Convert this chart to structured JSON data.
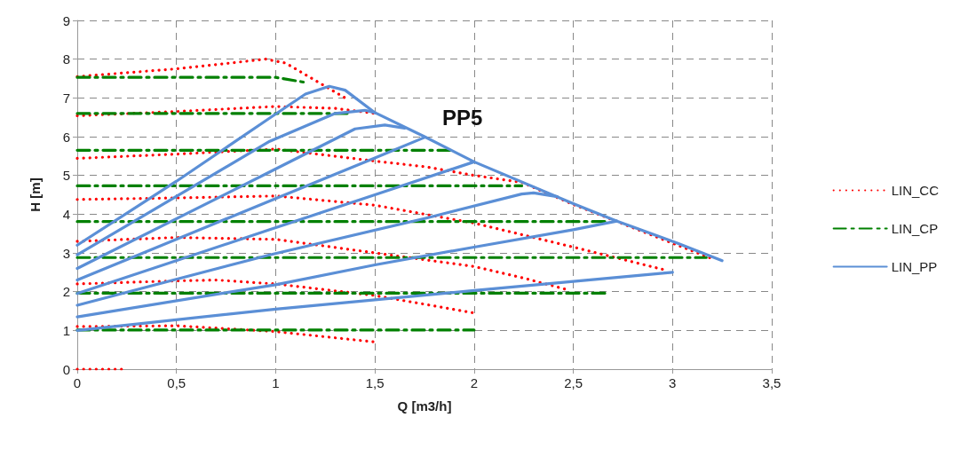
{
  "chart_data": {
    "type": "line",
    "xlabel": "Q [m3/h]",
    "ylabel": "H [m]",
    "annotations": [
      "PP5"
    ],
    "xlim": [
      0,
      3.5
    ],
    "xticks": [
      0,
      {
        "value": 0.5,
        "label": "0,5"
      },
      1,
      {
        "value": 1.5,
        "label": "1,5"
      },
      2,
      {
        "value": 2.5,
        "label": "2,5"
      },
      3,
      {
        "value": 3.5,
        "label": "3,5"
      }
    ],
    "ylim": [
      0,
      9
    ],
    "yticks": [
      0,
      1,
      2,
      3,
      4,
      5,
      6,
      7,
      8,
      9
    ],
    "grid": true,
    "legend": "right",
    "marker": "none",
    "series": [
      {
        "name": "LIN_CC",
        "color": "#ff0000",
        "line_style": "dotted",
        "x": [
          0,
          0.25
        ],
        "values": [
          0,
          0
        ]
      },
      {
        "color": "#ff0000",
        "line_style": "dotted",
        "x": [
          0,
          0.5,
          1,
          1.5
        ],
        "values": [
          1.1,
          1.12,
          0.97,
          0.7
        ]
      },
      {
        "color": "#ff0000",
        "line_style": "dotted",
        "x": [
          0,
          0.5,
          0.7,
          1,
          1.5,
          2
        ],
        "values": [
          2.2,
          2.28,
          2.3,
          2.2,
          1.9,
          1.45
        ]
      },
      {
        "color": "#ff0000",
        "line_style": "dotted",
        "x": [
          0,
          0.5,
          1,
          1.5,
          2,
          2.25,
          2.47
        ],
        "values": [
          3.3,
          3.4,
          3.35,
          3.0,
          2.65,
          2.35,
          2.05
        ]
      },
      {
        "color": "#ff0000",
        "line_style": "dotted",
        "x": [
          0,
          0.5,
          1,
          1.5,
          2,
          2.5,
          2.97
        ],
        "values": [
          4.38,
          4.42,
          4.47,
          4.23,
          3.77,
          3.15,
          2.55
        ]
      },
      {
        "color": "#ff0000",
        "line_style": "dotted",
        "x": [
          0,
          0.5,
          1,
          1.5,
          1.76,
          2,
          2.24,
          2.5,
          3,
          3.2
        ],
        "values": [
          5.44,
          5.55,
          5.68,
          5.37,
          5.22,
          5.0,
          4.82,
          4.25,
          3.25,
          2.85
        ]
      },
      {
        "color": "#ff0000",
        "line_style": "dotted",
        "x": [
          0,
          0.5,
          1,
          1.3,
          1.5
        ],
        "values": [
          6.54,
          6.65,
          6.78,
          6.73,
          6.6
        ]
      },
      {
        "color": "#ff0000",
        "line_style": "dotted",
        "x": [
          0,
          0.5,
          0.95,
          1.05,
          1.2,
          1.35
        ],
        "values": [
          7.55,
          7.75,
          8.0,
          7.9,
          7.45,
          7.0
        ]
      },
      {
        "name": "LIN_CP",
        "color": "#008000",
        "line_style": "dashed",
        "x": [
          0,
          2.0
        ],
        "values": [
          1.01,
          1.01
        ]
      },
      {
        "color": "#008000",
        "line_style": "dashed",
        "x": [
          0,
          2.67
        ],
        "values": [
          1.96,
          1.96
        ]
      },
      {
        "color": "#008000",
        "line_style": "dashed",
        "x": [
          0,
          3.17
        ],
        "values": [
          2.88,
          2.88
        ]
      },
      {
        "color": "#008000",
        "line_style": "dashed",
        "x": [
          0,
          2.67
        ],
        "values": [
          3.81,
          3.81
        ]
      },
      {
        "color": "#008000",
        "line_style": "dashed",
        "x": [
          0,
          2.24
        ],
        "values": [
          4.73,
          4.73
        ]
      },
      {
        "color": "#008000",
        "line_style": "dashed",
        "x": [
          0,
          1.89
        ],
        "values": [
          5.65,
          5.65
        ]
      },
      {
        "color": "#008000",
        "line_style": "dashed",
        "x": [
          0,
          1.37
        ],
        "values": [
          6.6,
          6.6
        ]
      },
      {
        "color": "#008000",
        "line_style": "dashed",
        "x": [
          0,
          1.0,
          1.15
        ],
        "values": [
          7.53,
          7.53,
          7.4
        ]
      },
      {
        "name": "LIN_PP",
        "color": "#5b8fd6",
        "line_style": "solid",
        "x": [
          0,
          1,
          2,
          3
        ],
        "values": [
          1.0,
          1.55,
          2.03,
          2.5
        ]
      },
      {
        "color": "#5b8fd6",
        "line_style": "solid",
        "x": [
          0,
          1,
          1.5,
          2,
          2.5,
          2.72
        ],
        "values": [
          1.35,
          2.18,
          2.69,
          3.15,
          3.6,
          3.82
        ]
      },
      {
        "color": "#5b8fd6",
        "line_style": "solid",
        "x": [
          0,
          0.97,
          1.76,
          2.24,
          2.3,
          2.42
        ],
        "values": [
          1.65,
          2.95,
          3.9,
          4.52,
          4.55,
          4.45
        ]
      },
      {
        "color": "#5b8fd6",
        "line_style": "solid",
        "x": [
          0,
          0.97,
          1.5,
          2.0
        ],
        "values": [
          1.95,
          3.6,
          4.5,
          5.35
        ]
      },
      {
        "color": "#5b8fd6",
        "line_style": "solid",
        "x": [
          0,
          0.97,
          1.5,
          1.75
        ],
        "values": [
          2.3,
          4.34,
          5.45,
          5.98
        ]
      },
      {
        "color": "#5b8fd6",
        "line_style": "solid",
        "x": [
          0,
          0.97,
          1.4,
          1.55,
          1.65
        ],
        "values": [
          2.6,
          5.09,
          6.2,
          6.3,
          6.22
        ]
      },
      {
        "color": "#5b8fd6",
        "line_style": "solid",
        "x": [
          0,
          0.97,
          1.3,
          1.45,
          1.5
        ],
        "values": [
          2.95,
          5.88,
          6.6,
          6.68,
          6.62
        ]
      },
      {
        "color": "#5b8fd6",
        "line_style": "solid",
        "x": [
          0,
          0.5,
          0.97,
          1.15,
          1.27,
          1.35,
          1.5,
          1.75,
          2.0,
          2.5,
          2.72,
          3.0,
          3.25
        ],
        "values": [
          3.2,
          4.85,
          6.48,
          7.1,
          7.3,
          7.2,
          6.62,
          6.0,
          5.35,
          4.27,
          3.82,
          3.3,
          2.8
        ]
      }
    ]
  }
}
